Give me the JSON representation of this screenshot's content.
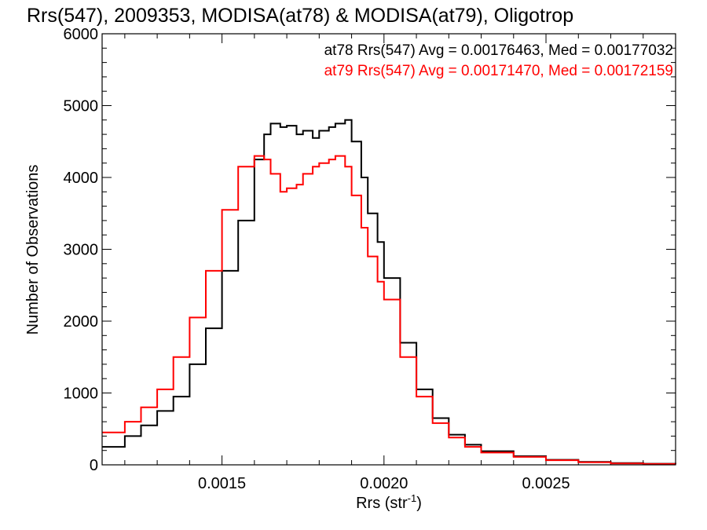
{
  "chart_data": {
    "type": "line",
    "title": "Rrs(547), 2009353, MODISA(at78) & MODISA(at79), Oligotrop",
    "xlabel": "Rrs (str",
    "xlabel_sup": "-1",
    "xlabel_end": ")",
    "ylabel": "Number of Observations",
    "xlim": [
      0.00113,
      0.0029
    ],
    "ylim": [
      0,
      6000
    ],
    "x_ticks": [
      0.0015,
      0.002,
      0.0025
    ],
    "x_tick_labels": [
      "0.0015",
      "0.0020",
      "0.0025"
    ],
    "y_ticks": [
      0,
      1000,
      2000,
      3000,
      4000,
      5000,
      6000
    ],
    "y_tick_labels": [
      "0",
      "1000",
      "2000",
      "3000",
      "4000",
      "5000",
      "6000"
    ],
    "grid": false,
    "legend_position": "top-right",
    "series": [
      {
        "name": "at78",
        "color": "#000000",
        "stats_label": "at78 Rrs(547) Avg = 0.00176463, Med = 0.00177032",
        "x": [
          0.00113,
          0.0012,
          0.00125,
          0.0013,
          0.00135,
          0.0014,
          0.00145,
          0.0015,
          0.00155,
          0.0016,
          0.00163,
          0.00165,
          0.00168,
          0.0017,
          0.00173,
          0.00175,
          0.00178,
          0.0018,
          0.00183,
          0.00185,
          0.00188,
          0.0019,
          0.00193,
          0.00195,
          0.00198,
          0.002,
          0.00205,
          0.0021,
          0.00215,
          0.0022,
          0.00225,
          0.0023,
          0.0024,
          0.0025,
          0.0026,
          0.0027,
          0.0028,
          0.0029
        ],
        "y": [
          250,
          400,
          550,
          750,
          950,
          1400,
          1900,
          2700,
          3400,
          4250,
          4600,
          4750,
          4700,
          4720,
          4600,
          4650,
          4550,
          4650,
          4700,
          4750,
          4800,
          4500,
          4000,
          3500,
          3100,
          2600,
          1700,
          1050,
          650,
          420,
          280,
          190,
          120,
          70,
          40,
          25,
          15,
          10
        ]
      },
      {
        "name": "at79",
        "color": "#ff0000",
        "stats_label": "at79 Rrs(547) Avg = 0.00171470, Med = 0.00172159",
        "x": [
          0.00113,
          0.0012,
          0.00125,
          0.0013,
          0.00135,
          0.0014,
          0.00145,
          0.0015,
          0.00155,
          0.0016,
          0.00163,
          0.00165,
          0.00168,
          0.0017,
          0.00173,
          0.00175,
          0.00178,
          0.0018,
          0.00183,
          0.00185,
          0.00188,
          0.0019,
          0.00193,
          0.00195,
          0.00198,
          0.002,
          0.00205,
          0.0021,
          0.00215,
          0.0022,
          0.00225,
          0.0023,
          0.0024,
          0.0025,
          0.0026,
          0.0027,
          0.0028,
          0.0029
        ],
        "y": [
          450,
          600,
          800,
          1050,
          1500,
          2050,
          2700,
          3550,
          4150,
          4300,
          4250,
          4050,
          3800,
          3850,
          3900,
          4050,
          4150,
          4200,
          4250,
          4300,
          4150,
          3750,
          3300,
          2900,
          2550,
          2300,
          1500,
          950,
          580,
          380,
          250,
          170,
          110,
          65,
          35,
          20,
          12,
          8
        ]
      }
    ]
  }
}
